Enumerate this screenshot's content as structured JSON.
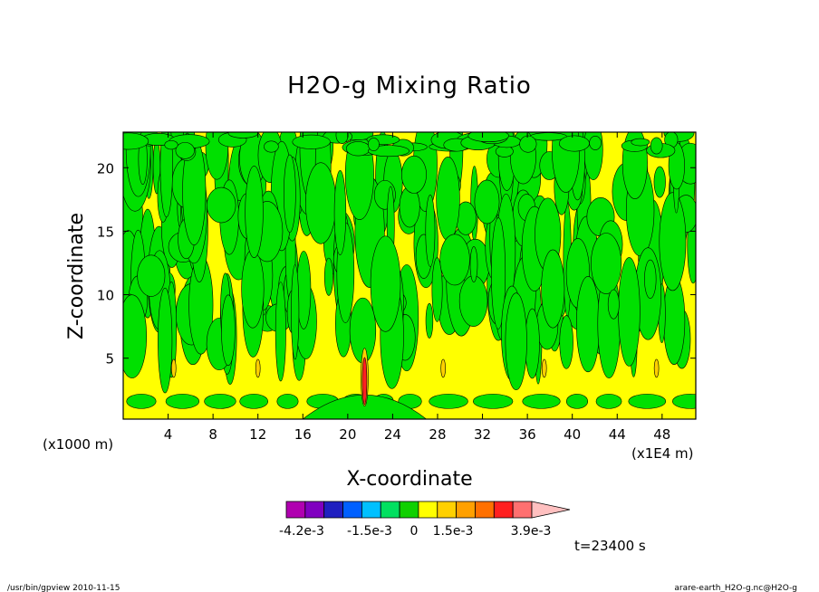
{
  "chart_data": {
    "type": "heatmap",
    "title": "H2O-g Mixing Ratio",
    "xlabel": "X-coordinate",
    "ylabel": "Z-coordinate",
    "x_unit_left": "(x1000 m)",
    "x_unit_right": "(x1E4 m)",
    "xlim": [
      0,
      51
    ],
    "ylim": [
      0.2,
      22.8
    ],
    "x_ticks": [
      "4",
      "8",
      "12",
      "16",
      "20",
      "24",
      "28",
      "32",
      "36",
      "40",
      "44",
      "48"
    ],
    "x_tick_values": [
      4,
      8,
      12,
      16,
      20,
      24,
      28,
      32,
      36,
      40,
      44,
      48
    ],
    "y_ticks": [
      "5",
      "10",
      "15",
      "20"
    ],
    "y_tick_values": [
      5,
      10,
      15,
      20
    ],
    "grid": false,
    "colorbar": {
      "colors": [
        "#b000b0",
        "#8000c0",
        "#2020c0",
        "#0060ff",
        "#00c0ff",
        "#00e060",
        "#10d000",
        "#ffff00",
        "#ffd000",
        "#ffa000",
        "#ff7000",
        "#ff2020",
        "#ff7070",
        "#ffc0c0"
      ],
      "labels": [
        "-4.2e-3",
        "-1.5e-3",
        "0",
        "1.5e-3",
        "3.9e-3"
      ]
    },
    "field_description_colors": {
      "background": "#ffff00",
      "band": "#00e000",
      "contour": "#000000",
      "spike": "#ff2020"
    },
    "time_label": "t=23400 s"
  },
  "footer": {
    "left": "/usr/bin/gpview   2010-11-15",
    "right": "arare-earth_H2O-g.nc@H2O-g"
  }
}
